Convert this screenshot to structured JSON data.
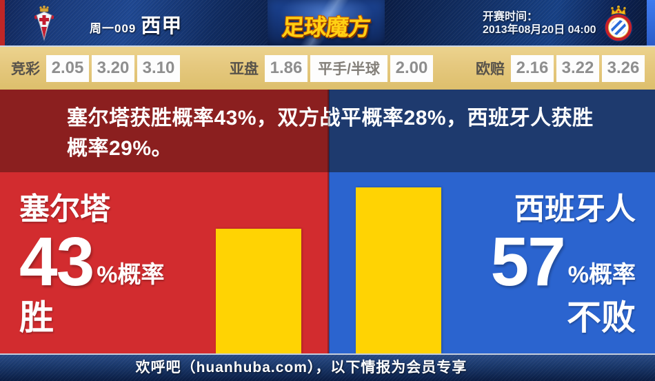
{
  "header": {
    "match_code": "周一009",
    "league": "西甲",
    "logo_text": "足球魔方",
    "kickoff_label": "开赛时间：",
    "kickoff_time": "2013年08月20日 04:00"
  },
  "odds": {
    "groups": [
      {
        "label": "竞彩",
        "values": [
          "2.05",
          "3.20",
          "3.10"
        ]
      },
      {
        "label": "亚盘",
        "values": [
          "1.86",
          "平手/半球",
          "2.00"
        ]
      },
      {
        "label": "欧赔",
        "values": [
          "2.16",
          "3.22",
          "3.26"
        ]
      }
    ]
  },
  "summary": {
    "line1": "塞尔塔获胜概率43%，双方战平概率28%，西班牙人获胜",
    "line2": "概率29%。"
  },
  "prediction": {
    "home": {
      "team": "塞尔塔",
      "percent": "43",
      "suffix": "%概率",
      "outcome": "胜"
    },
    "away": {
      "team": "西班牙人",
      "percent": "57",
      "suffix": "%概率",
      "outcome": "不败"
    }
  },
  "chart_data": {
    "type": "bar",
    "categories": [
      "塞尔塔 胜",
      "西班牙人 不败"
    ],
    "values": [
      43,
      57
    ],
    "unit": "%",
    "bar_color": "#ffd303",
    "panel_colors": [
      "#d22c2f",
      "#2b64cf"
    ],
    "ylim": [
      0,
      62
    ],
    "legend_position": "none"
  },
  "footer": {
    "text": "欢呼吧（huanhuba.com），以下情报为会员专享"
  },
  "colors": {
    "header_navy": "#0f2858",
    "odds_tan": "#e5c87e",
    "summary_red": "#8b1f1f",
    "summary_blue": "#1e3a6e",
    "main_red": "#d22c2f",
    "main_blue": "#2b64cf",
    "bar_yellow": "#ffd303",
    "logo_gold": "#ffd013"
  }
}
